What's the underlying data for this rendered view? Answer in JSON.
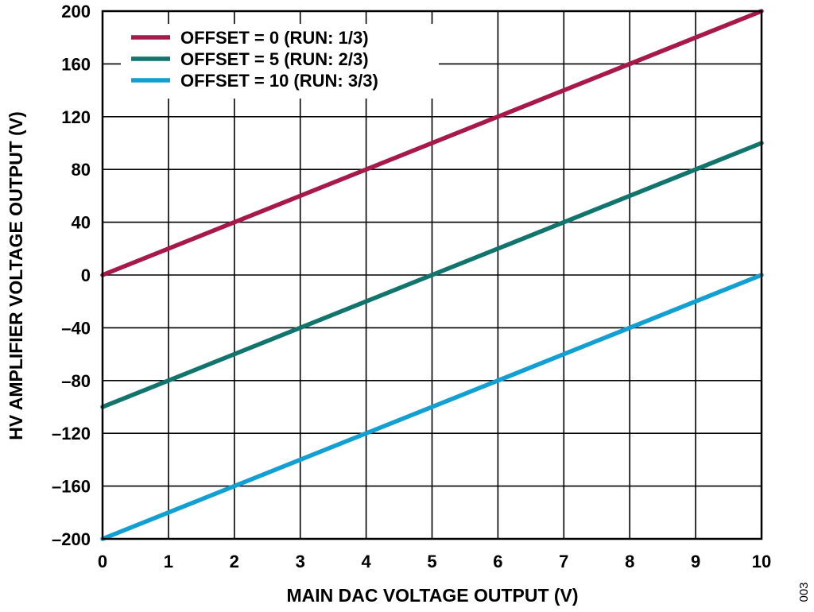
{
  "figure_id": "003",
  "chart_data": {
    "type": "line",
    "title": "",
    "xlabel": "MAIN DAC VOLTAGE OUTPUT (V)",
    "ylabel": "HV AMPLIFIER VOLTAGE OUTPUT (V)",
    "xlim": [
      0,
      10
    ],
    "ylim": [
      -200,
      200
    ],
    "xticks": [
      0,
      1,
      2,
      3,
      4,
      5,
      6,
      7,
      8,
      9,
      10
    ],
    "yticks": [
      200,
      160,
      120,
      80,
      40,
      0,
      -40,
      -80,
      -120,
      -160,
      -200
    ],
    "ytick_labels": [
      "200",
      "160",
      "120",
      "80",
      "40",
      "0",
      "–40",
      "–80",
      "–120",
      "–160",
      "–200"
    ],
    "grid": true,
    "legend_position": "top-left",
    "series": [
      {
        "name": "OFFSET = 0 (RUN: 1/3)",
        "color": "#A6194A",
        "x": [
          0,
          10
        ],
        "y": [
          0,
          200
        ]
      },
      {
        "name": "OFFSET = 5 (RUN: 2/3)",
        "color": "#11756D",
        "x": [
          0,
          10
        ],
        "y": [
          -100,
          100
        ]
      },
      {
        "name": "OFFSET = 10 (RUN: 3/3)",
        "color": "#129FD2",
        "x": [
          0,
          10
        ],
        "y": [
          -200,
          0
        ]
      }
    ]
  }
}
